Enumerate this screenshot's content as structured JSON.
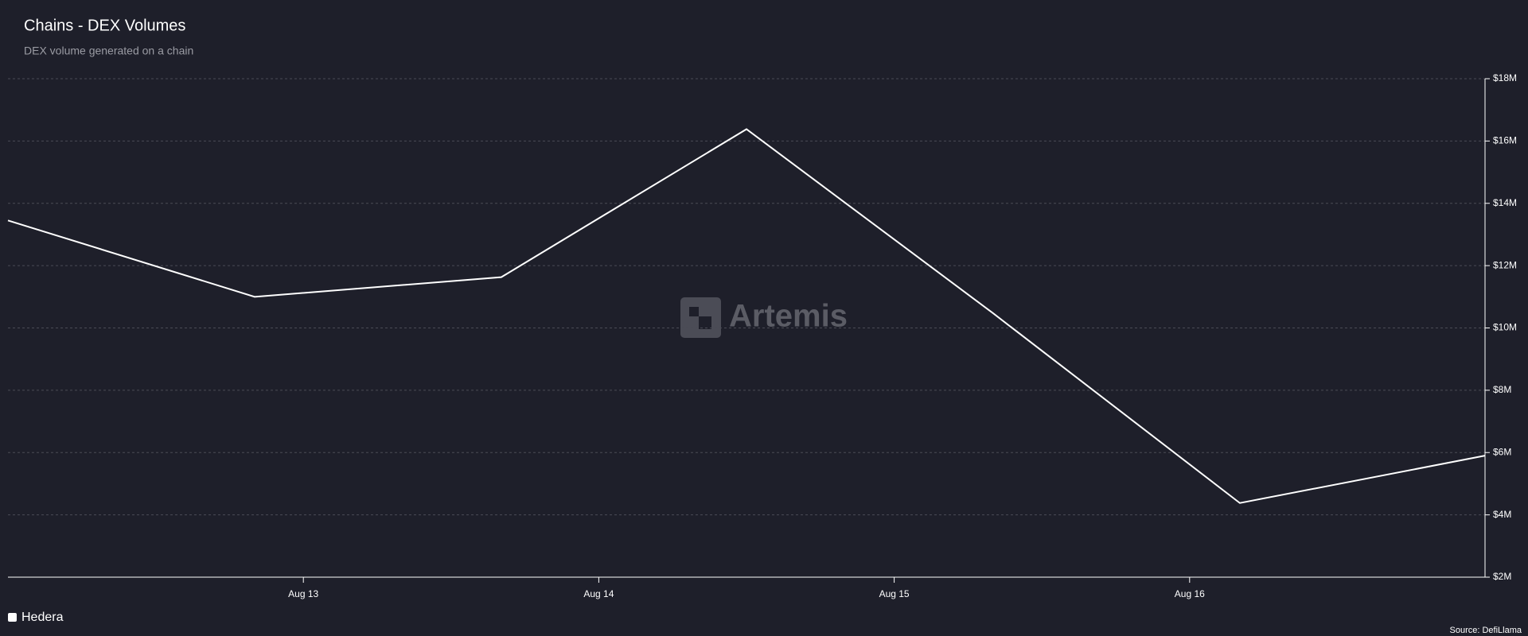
{
  "chart_data": {
    "type": "line",
    "title": "Chains - DEX Volumes",
    "subtitle": "DEX volume generated on a chain",
    "x": [
      12,
      12.835,
      13.67,
      14.5,
      15.335,
      16.17,
      17
    ],
    "xlim": [
      12,
      17
    ],
    "xticks": [
      {
        "value": 13,
        "label": "Aug 13"
      },
      {
        "value": 14,
        "label": "Aug 14"
      },
      {
        "value": 15,
        "label": "Aug 15"
      },
      {
        "value": 16,
        "label": "Aug 16"
      }
    ],
    "series": [
      {
        "name": "Hedera",
        "color": "#ffffff",
        "values": [
          13450000,
          11000000,
          11630000,
          16380000,
          10470000,
          4380000,
          5900000
        ]
      }
    ],
    "ylim": [
      2000000,
      18000000
    ],
    "yticks": [
      {
        "value": 2000000,
        "label": "$2M"
      },
      {
        "value": 4000000,
        "label": "$4M"
      },
      {
        "value": 6000000,
        "label": "$6M"
      },
      {
        "value": 8000000,
        "label": "$8M"
      },
      {
        "value": 10000000,
        "label": "$10M"
      },
      {
        "value": 12000000,
        "label": "$12M"
      },
      {
        "value": 14000000,
        "label": "$14M"
      },
      {
        "value": 16000000,
        "label": "$16M"
      },
      {
        "value": 18000000,
        "label": "$18M"
      }
    ],
    "grid": true,
    "watermark": "Artemis",
    "source": "Source: DefiLlama"
  }
}
